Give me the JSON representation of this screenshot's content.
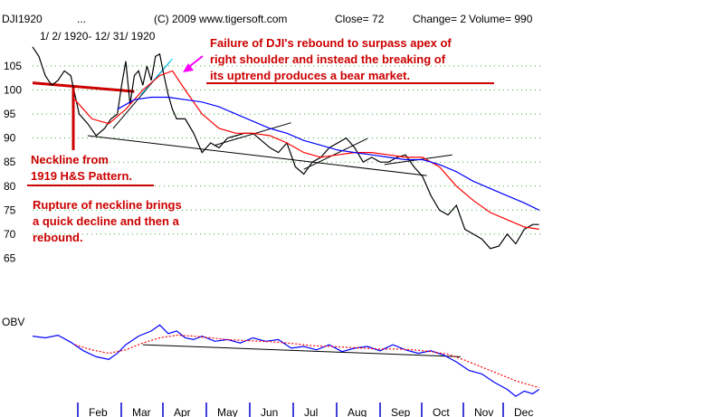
{
  "header": {
    "symbol": "DJI1920",
    "dots": "...",
    "copyright": "(C) 2009 www.tigersoft.com",
    "close": "Close=  72",
    "change": "Change= 2",
    "volume": "Volume= 990",
    "date_range": "1/ 2/ 1920- 12/ 31/ 1920"
  },
  "colors": {
    "price": "#000000",
    "ma_short": "#ff0000",
    "ma_long": "#0000ff",
    "obv": "#0000ff",
    "obv_ma": "#ff0000",
    "annotation": "#cc0000",
    "trendline": "#000000",
    "arrow": "#ff00ff",
    "grid_dot": "#33aa33"
  },
  "annotations": {
    "top_line1": "Failure of DJI's rebound to surpass apex of",
    "top_line2": "right shoulder and instead the breaking of",
    "top_line3": "its uptrend produces a bear market.",
    "neck_line1": "Neckline from",
    "neck_line2": "1919 H&S Pattern.",
    "rup_line1": "Rupture of neckline brings",
    "rup_line2": "a quick decline and then a",
    "rup_line3": "rebound."
  },
  "chart_data": [
    {
      "type": "line",
      "title": "DJI1920",
      "yticks": [
        "105",
        "100",
        "95",
        "90",
        "85",
        "80",
        "75",
        "70",
        "65"
      ],
      "yrange": [
        65,
        110
      ],
      "xrange": [
        0,
        12
      ],
      "grid": "dotted horizontal at each tick",
      "series": [
        {
          "name": "",
          "role": "price",
          "x": [
            0.0,
            0.15,
            0.3,
            0.45,
            0.6,
            0.75,
            0.9,
            1.0,
            1.1,
            1.3,
            1.5,
            1.7,
            1.85,
            2.0,
            2.1,
            2.2,
            2.3,
            2.4,
            2.5,
            2.6,
            2.7,
            2.8,
            2.9,
            3.0,
            3.1,
            3.2,
            3.3,
            3.4,
            3.6,
            3.8,
            4.0,
            4.2,
            4.4,
            4.6,
            4.8,
            5.0,
            5.2,
            5.4,
            5.6,
            5.8,
            6.0,
            6.2,
            6.4,
            6.6,
            6.8,
            7.0,
            7.2,
            7.4,
            7.6,
            7.8,
            8.0,
            8.2,
            8.4,
            8.6,
            8.8,
            9.0,
            9.2,
            9.4,
            9.6,
            9.8,
            10.0,
            10.2,
            10.4,
            10.6,
            10.8,
            11.0,
            11.2,
            11.4,
            11.6,
            11.8,
            11.95
          ],
          "y": [
            109,
            107,
            103,
            101,
            102,
            104,
            103,
            99,
            95,
            93,
            90.5,
            92,
            94,
            95,
            101,
            106,
            97,
            103,
            104,
            101,
            105,
            102,
            107,
            107.5,
            103,
            99,
            96,
            94,
            94,
            91,
            87,
            89,
            88,
            90,
            90.5,
            91,
            91,
            89.5,
            88,
            87,
            89,
            84,
            82.5,
            85,
            86,
            88,
            89,
            90,
            88,
            85,
            86,
            85,
            85,
            86,
            86.5,
            84,
            82,
            78,
            75,
            74,
            76,
            71,
            70,
            69,
            67,
            67.5,
            70,
            68,
            71,
            72,
            72
          ],
          "color": "#000000"
        },
        {
          "name": "",
          "role": "short-moving-average",
          "x": [
            1.0,
            1.4,
            1.8,
            2.2,
            2.6,
            3.0,
            3.3,
            3.6,
            4.0,
            4.4,
            4.8,
            5.2,
            5.6,
            6.0,
            6.4,
            6.8,
            7.2,
            7.6,
            8.0,
            8.4,
            8.8,
            9.2,
            9.6,
            10.0,
            10.4,
            10.8,
            11.2,
            11.6,
            11.95
          ],
          "y": [
            98,
            94,
            93,
            96,
            100,
            103,
            104,
            100,
            95,
            92,
            91,
            91,
            90.5,
            89,
            87,
            86,
            86.5,
            87,
            87,
            86.5,
            86,
            86,
            84,
            80,
            77,
            74.5,
            73,
            71.5,
            71
          ],
          "color": "#ff0000"
        },
        {
          "name": "",
          "role": "long-moving-average",
          "x": [
            2.0,
            2.4,
            2.8,
            3.2,
            3.6,
            4.0,
            4.4,
            4.8,
            5.2,
            5.6,
            6.0,
            6.4,
            6.8,
            7.2,
            7.6,
            8.0,
            8.4,
            8.8,
            9.2,
            9.6,
            10.0,
            10.4,
            10.8,
            11.2,
            11.6,
            11.95
          ],
          "y": [
            96,
            98,
            98.5,
            98.5,
            98,
            97.5,
            96.5,
            95,
            93.5,
            92,
            91,
            89.5,
            88.5,
            87.5,
            87,
            86.5,
            86,
            85.5,
            85.5,
            84.5,
            83,
            81,
            79.5,
            78,
            76.5,
            75
          ],
          "color": "#0000ff"
        }
      ],
      "lines": [
        {
          "label": "right-shoulder neckline",
          "x": [
            0.0,
            2.4
          ],
          "y": [
            101.5,
            99.7
          ],
          "color": "#cc0000"
        },
        {
          "label": "neckline",
          "x": [
            1.3,
            9.3
          ],
          "y": [
            90.5,
            82.2
          ],
          "color": "#000000"
        },
        {
          "label": "uptrend",
          "x": [
            1.9,
            3.25
          ],
          "y": [
            92,
            106
          ],
          "color": "#000000"
        },
        {
          "label": "uptrend-highlight",
          "x": [
            2.55,
            3.3
          ],
          "y": [
            99,
            106.5
          ],
          "color": "#00ccff"
        },
        {
          "label": "trend-may-jul",
          "x": [
            4.3,
            6.1
          ],
          "y": [
            88.5,
            93.2
          ],
          "color": "#000000"
        },
        {
          "label": "trend-aug-sep",
          "x": [
            6.4,
            7.9
          ],
          "y": [
            83.5,
            89.9
          ],
          "color": "#000000"
        },
        {
          "label": "trend-oct",
          "x": [
            8.3,
            9.9
          ],
          "y": [
            84.5,
            86.5
          ],
          "color": "#000000"
        }
      ]
    },
    {
      "type": "line",
      "title": "OBV",
      "yrange": [
        0,
        100
      ],
      "xrange": [
        0,
        12
      ],
      "xticks": [
        "Feb",
        "Mar",
        "Apr",
        "May",
        "Jun",
        "Jul",
        "Aug",
        "Sep",
        "Oct",
        "Nov",
        "Dec"
      ],
      "series": [
        {
          "name": "",
          "role": "obv",
          "x": [
            0.0,
            0.3,
            0.6,
            0.9,
            1.2,
            1.5,
            1.8,
            2.0,
            2.2,
            2.5,
            2.8,
            3.0,
            3.2,
            3.4,
            3.6,
            3.8,
            4.0,
            4.3,
            4.6,
            4.9,
            5.2,
            5.5,
            5.8,
            6.1,
            6.4,
            6.7,
            7.0,
            7.3,
            7.6,
            7.9,
            8.2,
            8.5,
            8.8,
            9.1,
            9.4,
            9.7,
            10.0,
            10.3,
            10.6,
            10.9,
            11.2,
            11.4,
            11.6,
            11.8,
            11.95
          ],
          "y": [
            72,
            70,
            73,
            65,
            55,
            48,
            45,
            52,
            62,
            72,
            78,
            85,
            75,
            78,
            70,
            68,
            72,
            66,
            68,
            64,
            70,
            66,
            68,
            58,
            60,
            56,
            62,
            54,
            58,
            60,
            55,
            62,
            56,
            52,
            55,
            50,
            42,
            32,
            28,
            18,
            10,
            2,
            8,
            5,
            10
          ],
          "color": "#0000ff"
        },
        {
          "name": "",
          "role": "obv-moving-average",
          "x": [
            1.0,
            1.4,
            1.8,
            2.2,
            2.6,
            3.0,
            3.4,
            3.8,
            4.2,
            4.6,
            5.0,
            5.4,
            5.8,
            6.2,
            6.6,
            7.0,
            7.4,
            7.8,
            8.2,
            8.6,
            9.0,
            9.4,
            9.8,
            10.2,
            10.6,
            11.0,
            11.4,
            11.95
          ],
          "y": [
            62,
            56,
            52,
            56,
            64,
            70,
            73,
            72,
            70,
            68,
            67,
            66,
            65,
            63,
            61,
            60,
            59,
            58,
            57,
            57,
            56,
            54,
            51,
            44,
            36,
            28,
            20,
            12
          ],
          "color": "#ff0000"
        }
      ],
      "lines": [
        {
          "label": "obv-trendline",
          "x": [
            2.6,
            10.1
          ],
          "y": [
            62,
            48
          ],
          "color": "#000000"
        }
      ]
    }
  ]
}
